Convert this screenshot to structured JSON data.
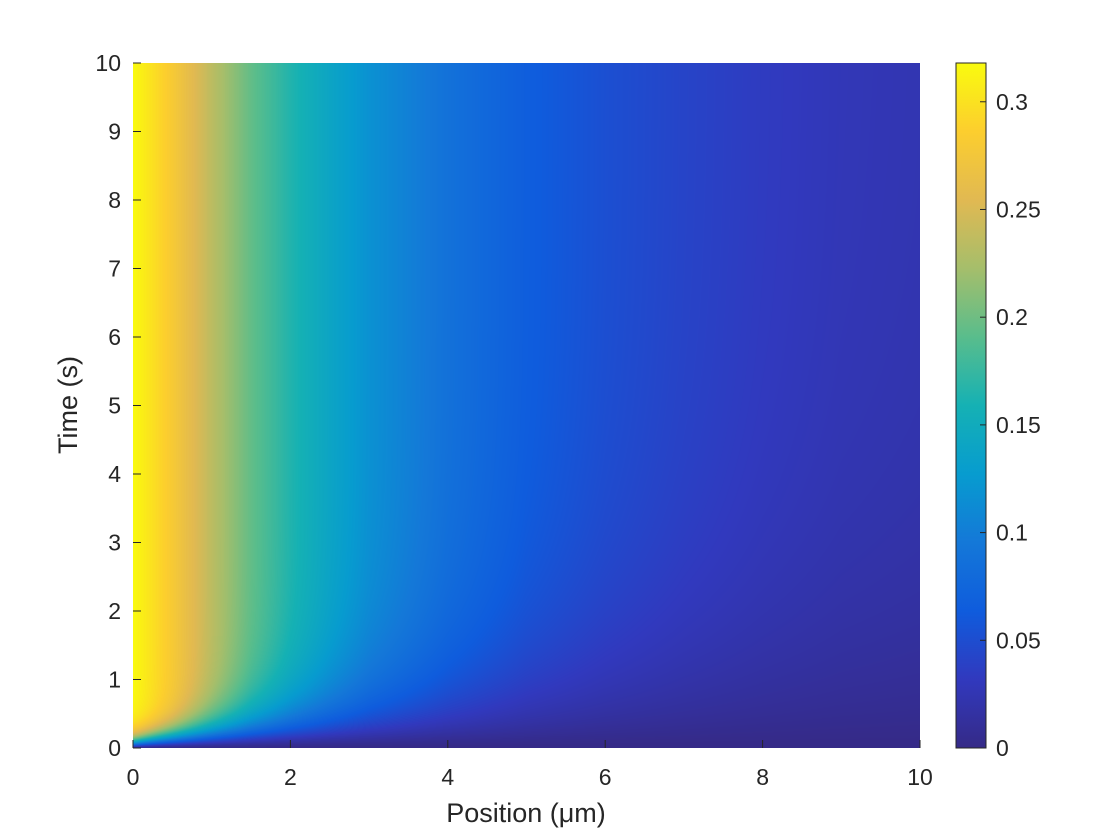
{
  "chart_data": {
    "type": "heatmap",
    "title": "",
    "xlabel": "Position (μm)",
    "ylabel": "Time (s)",
    "xlim": [
      0,
      10
    ],
    "ylim": [
      0,
      10
    ],
    "x_ticks": [
      0,
      2,
      4,
      6,
      8,
      10
    ],
    "y_ticks": [
      0,
      1,
      2,
      3,
      4,
      5,
      6,
      7,
      8,
      9,
      10
    ],
    "colorbar": {
      "lim": [
        0,
        0.318
      ],
      "ticks": [
        0,
        0.05,
        0.1,
        0.15,
        0.2,
        0.25,
        0.3
      ],
      "tick_labels": [
        "0",
        "0.05",
        "0.1",
        "0.15",
        "0.2",
        "0.25",
        "0.3"
      ],
      "colormap": "parula"
    },
    "grid": false,
    "legend": "colorbar-right",
    "surface": {
      "description_values": "concentration at (position, time)",
      "steady_state_profile": {
        "x": [
          0,
          0.5,
          1,
          1.5,
          2,
          2.5,
          3,
          4,
          5,
          6,
          7,
          8,
          9,
          10
        ],
        "value": [
          0.318,
          0.28,
          0.235,
          0.195,
          0.165,
          0.14,
          0.118,
          0.088,
          0.066,
          0.052,
          0.042,
          0.034,
          0.028,
          0.025
        ]
      }
    }
  }
}
